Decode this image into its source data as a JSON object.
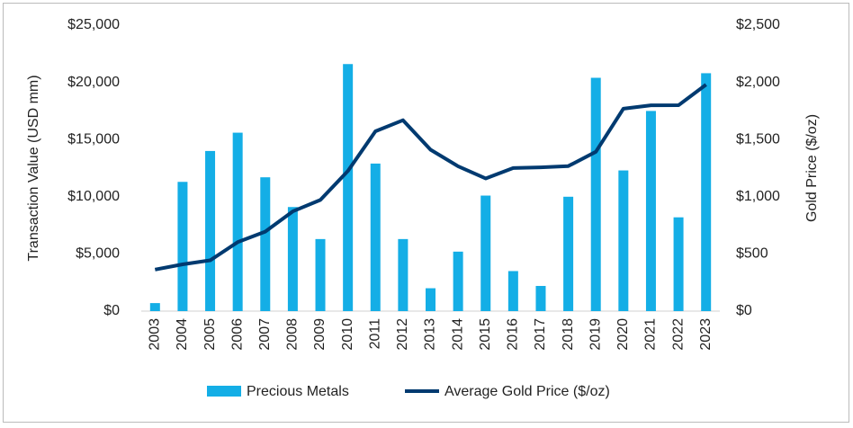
{
  "chart_data": {
    "type": "bar-line",
    "categories": [
      "2003",
      "2004",
      "2005",
      "2006",
      "2007",
      "2008",
      "2009",
      "2010",
      "2011",
      "2012",
      "2013",
      "2014",
      "2015",
      "2016",
      "2017",
      "2018",
      "2019",
      "2020",
      "2021",
      "2022",
      "2023"
    ],
    "series": [
      {
        "name": "Precious Metals",
        "type": "bar",
        "color": "#14aee6",
        "values": [
          700,
          11300,
          14000,
          15600,
          11700,
          9100,
          6300,
          21600,
          12900,
          6300,
          2000,
          5200,
          10100,
          3500,
          2200,
          10000,
          20400,
          12300,
          17500,
          8200,
          20800
        ]
      },
      {
        "name": "Average Gold Price ($/oz)",
        "type": "line",
        "axis": "y2",
        "color": "#003a70",
        "values": [
          363,
          409,
          444,
          603,
          695,
          872,
          972,
          1225,
          1572,
          1669,
          1411,
          1266,
          1160,
          1251,
          1257,
          1268,
          1393,
          1770,
          1799,
          1800,
          1980
        ]
      }
    ],
    "y_label": "Transaction Value (USD mm)",
    "y2_label": "Gold Price ($/oz)",
    "ylim": [
      0,
      25000
    ],
    "yticks": [
      {
        "value": 0,
        "label": "$0"
      },
      {
        "value": 5000,
        "label": "$5,000"
      },
      {
        "value": 10000,
        "label": "$10,000"
      },
      {
        "value": 15000,
        "label": "$15,000"
      },
      {
        "value": 20000,
        "label": "$20,000"
      },
      {
        "value": 25000,
        "label": "$25,000"
      }
    ],
    "y2lim": [
      0,
      2500
    ],
    "y2ticks": [
      {
        "value": 0,
        "label": "$0"
      },
      {
        "value": 500,
        "label": "$500"
      },
      {
        "value": 1000,
        "label": "$1,000"
      },
      {
        "value": 1500,
        "label": "$1,500"
      },
      {
        "value": 2000,
        "label": "$2,000"
      },
      {
        "value": 2500,
        "label": "$2,500"
      }
    ],
    "legend": "bottom"
  }
}
